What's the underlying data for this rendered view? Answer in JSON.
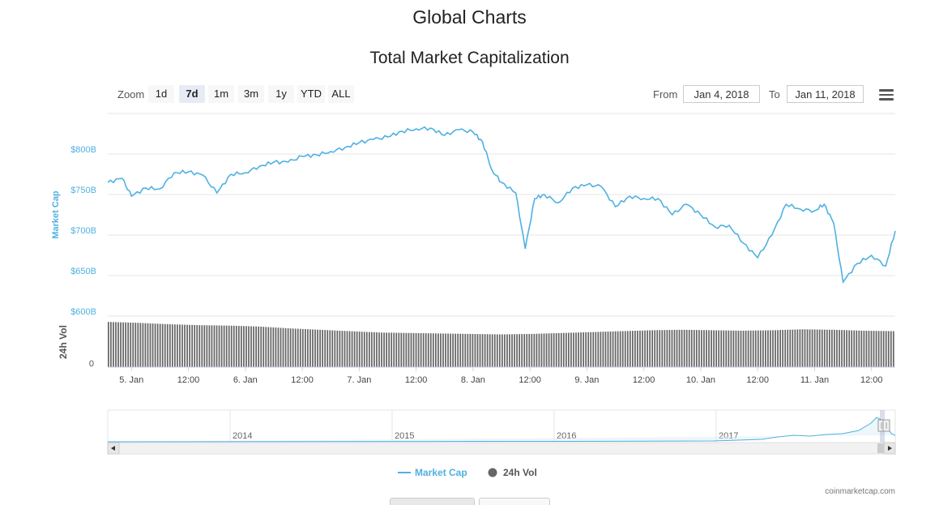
{
  "page": {
    "title": "Global Charts"
  },
  "zoom": {
    "label": "Zoom",
    "buttons": [
      "1d",
      "7d",
      "1m",
      "3m",
      "1y",
      "YTD",
      "ALL"
    ],
    "active": "7d"
  },
  "range": {
    "from_label": "From",
    "from_value": "Jan 4, 2018",
    "to_label": "To",
    "to_value": "Jan 11, 2018"
  },
  "colors": {
    "market_cap": "#4fb1e1",
    "volume": "#666666",
    "axis_text": "#4fb1e1",
    "grid": "#e6e6e6"
  },
  "icons": {
    "menu": "hamburger-menu-icon",
    "left_arrow": "arrow-left-icon",
    "right_arrow": "arrow-right-icon"
  },
  "navigator": {
    "years": [
      "2014",
      "2015",
      "2016",
      "2017"
    ]
  },
  "credit": "coinmarketcap.com",
  "chart_data": {
    "type": "line",
    "title": "Total Market Capitalization",
    "ylabel": "Market Cap",
    "ylabel_volume": "24h Vol",
    "y_ticks": [
      "$600B",
      "$650B",
      "$700B",
      "$750B",
      "$800B"
    ],
    "ylim": [
      600,
      850
    ],
    "volume_tick": "0",
    "x_ticks": [
      "5. Jan",
      "12:00",
      "6. Jan",
      "12:00",
      "7. Jan",
      "12:00",
      "8. Jan",
      "12:00",
      "9. Jan",
      "12:00",
      "10. Jan",
      "12:00",
      "11. Jan",
      "12:00"
    ],
    "x_range": [
      "Jan 4, 2018 19:00",
      "Jan 11, 2018 17:00"
    ],
    "legend": [
      "Market Cap",
      "24h Vol"
    ],
    "series": [
      {
        "name": "Market Cap",
        "unit": "billion USD",
        "x": [
          "Jan 4 19:00",
          "Jan 4 22:00",
          "Jan 5 00:00",
          "Jan 5 03:00",
          "Jan 5 06:00",
          "Jan 5 09:00",
          "Jan 5 12:00",
          "Jan 5 15:00",
          "Jan 5 18:00",
          "Jan 5 21:00",
          "Jan 6 00:00",
          "Jan 6 03:00",
          "Jan 6 06:00",
          "Jan 6 09:00",
          "Jan 6 12:00",
          "Jan 6 15:00",
          "Jan 6 18:00",
          "Jan 6 21:00",
          "Jan 7 00:00",
          "Jan 7 03:00",
          "Jan 7 06:00",
          "Jan 7 09:00",
          "Jan 7 12:00",
          "Jan 7 15:00",
          "Jan 7 18:00",
          "Jan 7 21:00",
          "Jan 8 00:00",
          "Jan 8 02:00",
          "Jan 8 04:00",
          "Jan 8 06:00",
          "Jan 8 09:00",
          "Jan 8 11:00",
          "Jan 8 13:00",
          "Jan 8 15:00",
          "Jan 8 18:00",
          "Jan 8 21:00",
          "Jan 9 00:00",
          "Jan 9 03:00",
          "Jan 9 06:00",
          "Jan 9 09:00",
          "Jan 9 12:00",
          "Jan 9 15:00",
          "Jan 9 18:00",
          "Jan 9 21:00",
          "Jan 10 00:00",
          "Jan 10 03:00",
          "Jan 10 06:00",
          "Jan 10 09:00",
          "Jan 10 12:00",
          "Jan 10 15:00",
          "Jan 10 18:00",
          "Jan 10 21:00",
          "Jan 11 00:00",
          "Jan 11 02:00",
          "Jan 11 04:00",
          "Jan 11 06:00",
          "Jan 11 09:00",
          "Jan 11 12:00",
          "Jan 11 15:00",
          "Jan 11 17:00"
        ],
        "values": [
          765,
          770,
          748,
          758,
          757,
          777,
          778,
          774,
          752,
          775,
          777,
          785,
          790,
          790,
          797,
          799,
          803,
          808,
          814,
          818,
          821,
          828,
          831,
          832,
          823,
          830,
          827,
          815,
          780,
          765,
          752,
          683,
          745,
          750,
          740,
          758,
          762,
          760,
          735,
          748,
          745,
          745,
          725,
          738,
          725,
          710,
          712,
          690,
          672,
          700,
          738,
          732,
          730,
          738,
          715,
          642,
          665,
          675,
          662,
          705
        ]
      },
      {
        "name": "24h Vol",
        "unit": "relative height",
        "x_start": "Jan 4 19:00",
        "x_end": "Jan 11 17:00",
        "values": [
          0.98,
          0.96,
          0.93,
          0.91,
          0.9,
          0.88,
          0.84,
          0.81,
          0.78,
          0.75,
          0.74,
          0.73,
          0.72,
          0.71,
          0.72,
          0.74,
          0.76,
          0.78,
          0.8,
          0.81,
          0.8,
          0.79,
          0.8,
          0.82,
          0.81,
          0.79,
          0.78
        ]
      }
    ]
  }
}
